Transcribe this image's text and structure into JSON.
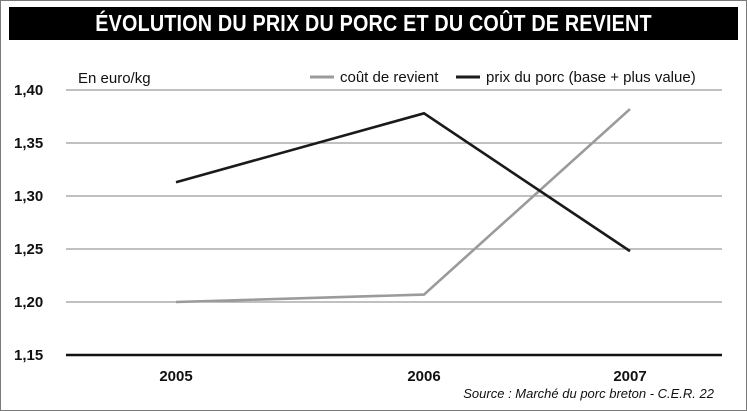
{
  "title": "ÉVOLUTION DU PRIX DU PORC ET DU COÛT DE REVIENT",
  "source": "Source : Marché du porc breton - C.E.R. 22",
  "colors": {
    "title_bg": "#000000",
    "title_fg": "#ffffff",
    "gridline": "#9a9a9a",
    "series_cout": "#9b9b9b",
    "series_prix": "#1a1a1a"
  },
  "chart_data": {
    "type": "line",
    "ylabel": "En euro/kg",
    "xlabel": "",
    "categories": [
      "2005",
      "2006",
      "2007"
    ],
    "ylim": [
      1.15,
      1.4
    ],
    "yticks": [
      "1,40",
      "1,35",
      "1,30",
      "1,25",
      "1,20",
      "1,15"
    ],
    "grid": true,
    "legend_position": "top-right",
    "series": [
      {
        "name": "coût de revient",
        "values": [
          1.2,
          1.207,
          1.382
        ]
      },
      {
        "name": "prix du porc (base + plus value)",
        "values": [
          1.313,
          1.378,
          1.248
        ]
      }
    ]
  }
}
